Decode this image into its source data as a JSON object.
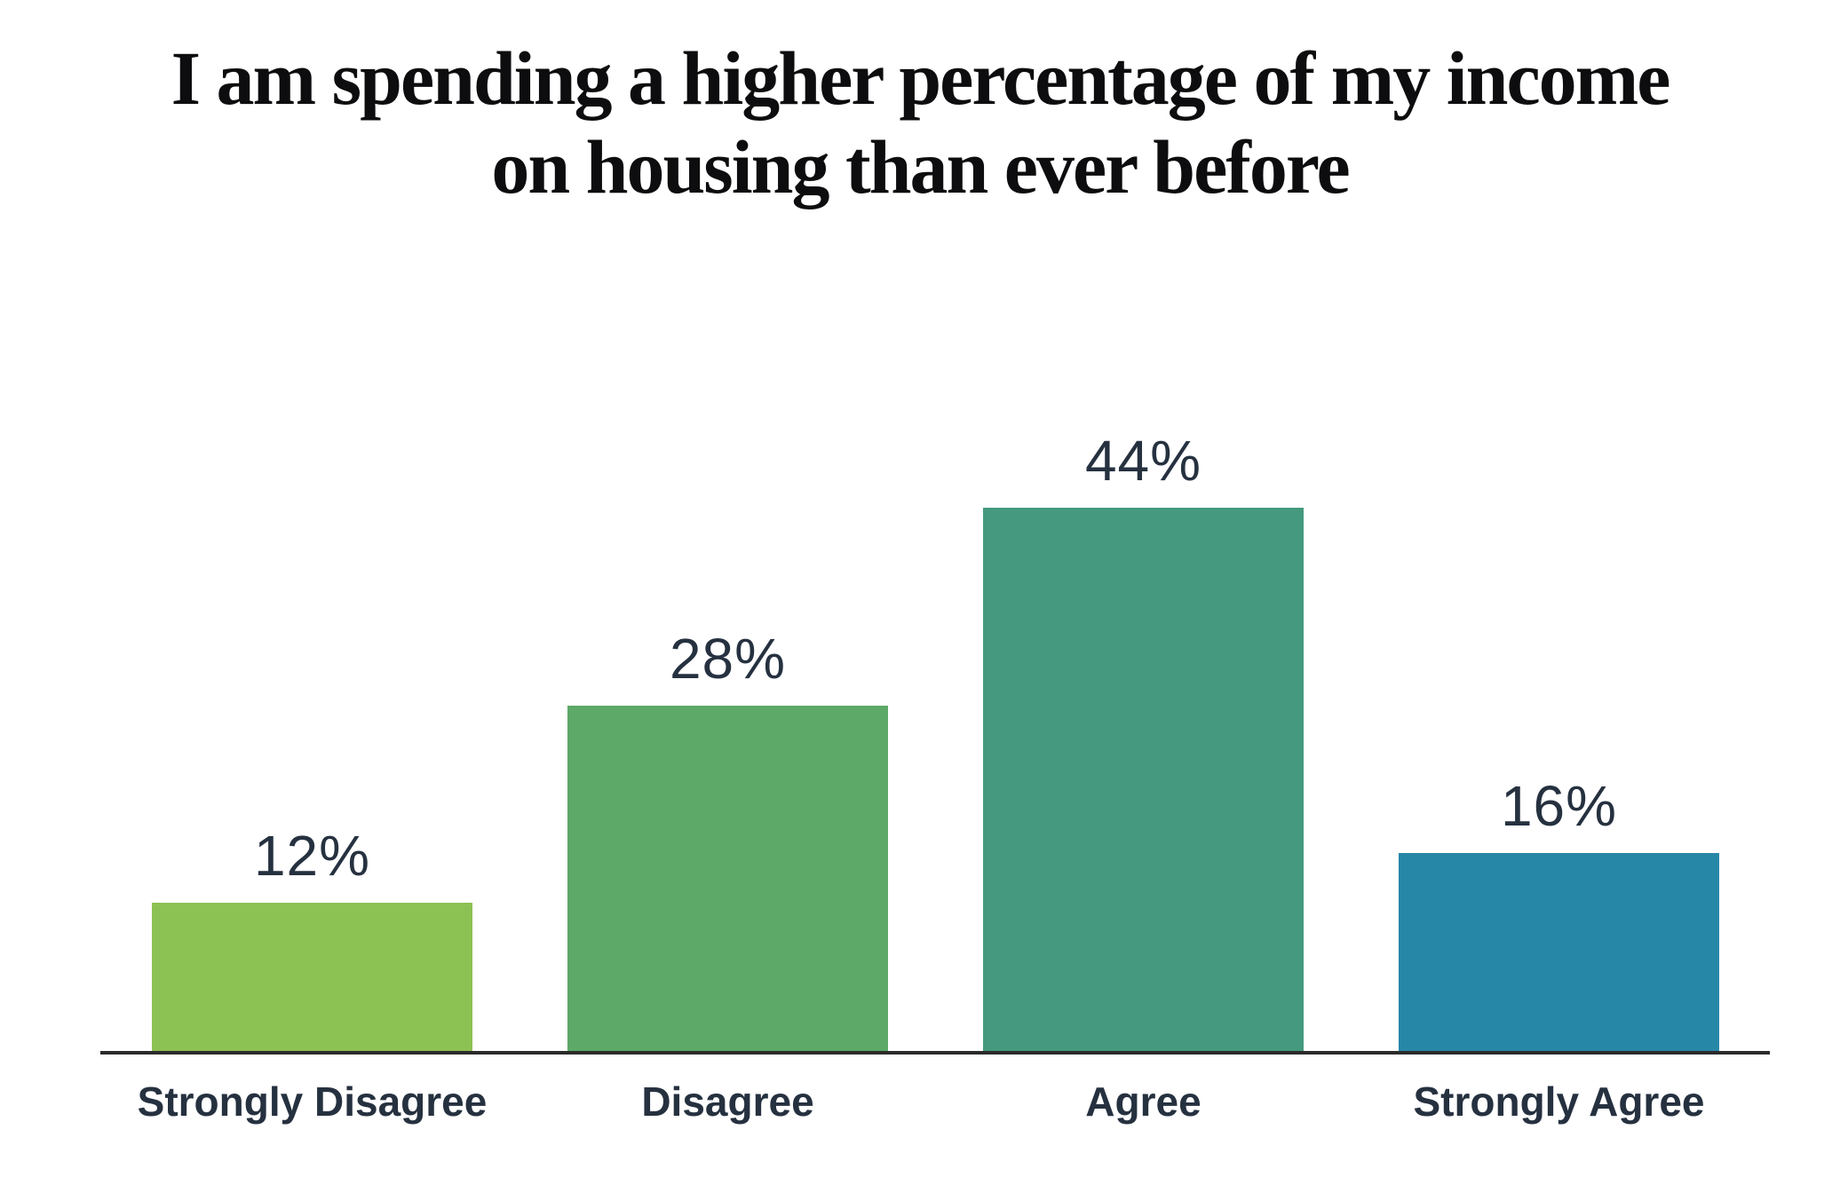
{
  "chart_data": {
    "type": "bar",
    "title": "I am spending a higher percentage of my income on housing than ever before",
    "title_lines": [
      "I am spending a higher percentage of my income",
      "on housing than ever before"
    ],
    "categories": [
      "Strongly Disagree",
      "Disagree",
      "Agree",
      "Strongly Agree"
    ],
    "values": [
      12,
      28,
      44,
      16
    ],
    "value_labels": [
      "12%",
      "28%",
      "44%",
      "16%"
    ],
    "bar_colors": [
      "#8CC153",
      "#5DA967",
      "#45997E",
      "#2787A6"
    ],
    "xlabel": "",
    "ylabel": "",
    "ylim": [
      0,
      50
    ],
    "grid": false,
    "legend": "none",
    "value_label_position": "above-bar",
    "axis_line_color": "#2B2B2B",
    "text_color": "#263140",
    "title_color": "#0D0D0F",
    "background": "#FFFFFF"
  }
}
